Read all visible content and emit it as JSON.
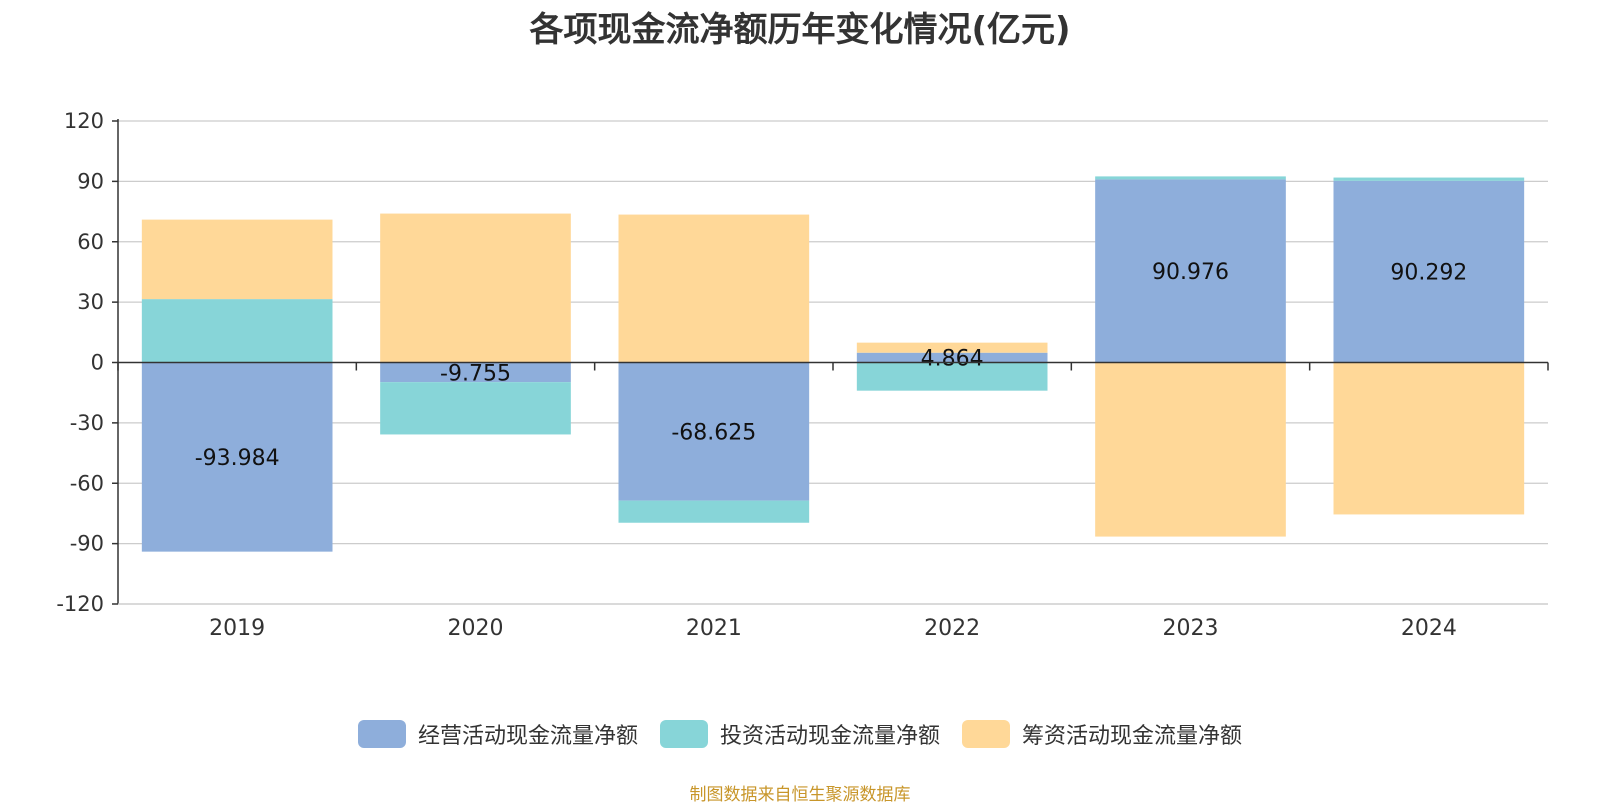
{
  "chart_data": {
    "type": "bar",
    "stacked": true,
    "title": "各项现金流净额历年变化情况(亿元)",
    "categories": [
      "2019",
      "2020",
      "2021",
      "2022",
      "2023",
      "2024"
    ],
    "ylim": [
      -120,
      120
    ],
    "yticks": [
      120,
      90,
      60,
      30,
      0,
      -30,
      -60,
      -90,
      -120
    ],
    "grid": true,
    "legend_position": "bottom",
    "series": [
      {
        "name": "经营活动现金流量净额",
        "color": "#8eaedb",
        "values": [
          -93.984,
          -9.755,
          -68.625,
          4.864,
          90.976,
          90.292
        ],
        "labels": [
          "-93.984",
          "-9.755",
          "-68.625",
          "4.864",
          "90.976",
          "90.292"
        ]
      },
      {
        "name": "投资活动现金流量净额",
        "color": "#87d5d8",
        "values": [
          31.5,
          -26.0,
          -11.0,
          -14.0,
          1.5,
          1.6
        ]
      },
      {
        "name": "筹资活动现金流量净额",
        "color": "#ffd898",
        "values": [
          39.5,
          74.0,
          73.5,
          5.0,
          -86.5,
          -75.5
        ]
      }
    ],
    "source": "制图数据来自恒生聚源数据库"
  }
}
